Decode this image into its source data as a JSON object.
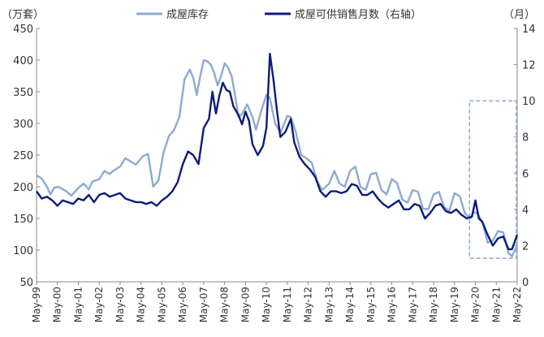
{
  "chart_data": {
    "type": "line",
    "title": "",
    "left_unit": "（万套）",
    "right_unit": "（月）",
    "left_axis": {
      "min": 50,
      "max": 450,
      "ticks": [
        "50",
        "100",
        "150",
        "200",
        "250",
        "300",
        "350",
        "400",
        "450"
      ]
    },
    "right_axis": {
      "min": 0,
      "max": 14,
      "ticks": [
        "0",
        "2",
        "4",
        "6",
        "8",
        "10",
        "12",
        "14"
      ]
    },
    "x_ticks": [
      "May-99",
      "May-00",
      "May-01",
      "May-02",
      "May-03",
      "May-04",
      "May-05",
      "May-06",
      "May-07",
      "May-08",
      "May-09",
      "May-10",
      "May-11",
      "May-12",
      "May-13",
      "May-14",
      "May-15",
      "May-16",
      "May-17",
      "May-18",
      "May-19",
      "May-20",
      "May-21",
      "May-22"
    ],
    "x_range": [
      "1999-05",
      "2022-05"
    ],
    "grid": false,
    "legend_placement": "top",
    "series": [
      {
        "name": "成屋库存",
        "axis": "left",
        "color": "#8eaad2",
        "points": [
          [
            "1999-05",
            218
          ],
          [
            "1999-08",
            213
          ],
          [
            "1999-11",
            200
          ],
          [
            "2000-01",
            188
          ],
          [
            "2000-03",
            198
          ],
          [
            "2000-05",
            200
          ],
          [
            "2000-07",
            198
          ],
          [
            "2000-10",
            193
          ],
          [
            "2001-01",
            186
          ],
          [
            "2001-05",
            198
          ],
          [
            "2001-08",
            205
          ],
          [
            "2001-11",
            196
          ],
          [
            "2002-01",
            208
          ],
          [
            "2002-05",
            212
          ],
          [
            "2002-08",
            225
          ],
          [
            "2002-11",
            220
          ],
          [
            "2003-01",
            225
          ],
          [
            "2003-05",
            232
          ],
          [
            "2003-08",
            245
          ],
          [
            "2003-11",
            240
          ],
          [
            "2004-02",
            235
          ],
          [
            "2004-06",
            248
          ],
          [
            "2004-09",
            252
          ],
          [
            "2004-12",
            200
          ],
          [
            "2005-03",
            210
          ],
          [
            "2005-06",
            255
          ],
          [
            "2005-09",
            280
          ],
          [
            "2005-12",
            290
          ],
          [
            "2006-03",
            310
          ],
          [
            "2006-06",
            370
          ],
          [
            "2006-09",
            385
          ],
          [
            "2006-11",
            372
          ],
          [
            "2007-01",
            345
          ],
          [
            "2007-03",
            375
          ],
          [
            "2007-05",
            400
          ],
          [
            "2007-07",
            398
          ],
          [
            "2007-09",
            393
          ],
          [
            "2007-11",
            380
          ],
          [
            "2008-01",
            360
          ],
          [
            "2008-03",
            375
          ],
          [
            "2008-05",
            395
          ],
          [
            "2008-07",
            388
          ],
          [
            "2008-09",
            375
          ],
          [
            "2008-11",
            345
          ],
          [
            "2009-01",
            310
          ],
          [
            "2009-03",
            315
          ],
          [
            "2009-06",
            330
          ],
          [
            "2009-09",
            310
          ],
          [
            "2009-11",
            290
          ],
          [
            "2010-02",
            320
          ],
          [
            "2010-05",
            345
          ],
          [
            "2010-07",
            340
          ],
          [
            "2010-10",
            300
          ],
          [
            "2011-01",
            285
          ],
          [
            "2011-05",
            312
          ],
          [
            "2011-07",
            310
          ],
          [
            "2011-10",
            285
          ],
          [
            "2012-01",
            250
          ],
          [
            "2012-04",
            245
          ],
          [
            "2012-07",
            238
          ],
          [
            "2012-10",
            210
          ],
          [
            "2013-01",
            195
          ],
          [
            "2013-05",
            205
          ],
          [
            "2013-08",
            225
          ],
          [
            "2013-11",
            205
          ],
          [
            "2014-02",
            200
          ],
          [
            "2014-05",
            225
          ],
          [
            "2014-08",
            232
          ],
          [
            "2014-11",
            200
          ],
          [
            "2015-02",
            195
          ],
          [
            "2015-05",
            220
          ],
          [
            "2015-08",
            222
          ],
          [
            "2015-11",
            195
          ],
          [
            "2016-02",
            188
          ],
          [
            "2016-05",
            212
          ],
          [
            "2016-08",
            206
          ],
          [
            "2016-11",
            180
          ],
          [
            "2017-02",
            175
          ],
          [
            "2017-05",
            195
          ],
          [
            "2017-08",
            192
          ],
          [
            "2017-11",
            165
          ],
          [
            "2018-02",
            165
          ],
          [
            "2018-05",
            188
          ],
          [
            "2018-08",
            192
          ],
          [
            "2018-11",
            168
          ],
          [
            "2019-02",
            162
          ],
          [
            "2019-05",
            190
          ],
          [
            "2019-08",
            185
          ],
          [
            "2019-11",
            158
          ],
          [
            "2020-02",
            150
          ],
          [
            "2020-04",
            160
          ],
          [
            "2020-06",
            158
          ],
          [
            "2020-09",
            145
          ],
          [
            "2020-12",
            112
          ],
          [
            "2021-03",
            115
          ],
          [
            "2021-06",
            130
          ],
          [
            "2021-09",
            128
          ],
          [
            "2021-12",
            95
          ],
          [
            "2022-02",
            90
          ],
          [
            "2022-05",
            108
          ]
        ]
      },
      {
        "name": "成屋可供销售月数（右轴）",
        "axis": "right",
        "color": "#0c1c78",
        "points": [
          [
            "1999-05",
            5.0
          ],
          [
            "1999-08",
            4.6
          ],
          [
            "1999-11",
            4.7
          ],
          [
            "2000-02",
            4.5
          ],
          [
            "2000-05",
            4.2
          ],
          [
            "2000-08",
            4.5
          ],
          [
            "2000-11",
            4.4
          ],
          [
            "2001-02",
            4.3
          ],
          [
            "2001-05",
            4.6
          ],
          [
            "2001-08",
            4.5
          ],
          [
            "2001-11",
            4.8
          ],
          [
            "2002-02",
            4.4
          ],
          [
            "2002-05",
            4.8
          ],
          [
            "2002-08",
            4.9
          ],
          [
            "2002-11",
            4.7
          ],
          [
            "2003-02",
            4.8
          ],
          [
            "2003-05",
            4.9
          ],
          [
            "2003-08",
            4.6
          ],
          [
            "2003-11",
            4.5
          ],
          [
            "2004-02",
            4.4
          ],
          [
            "2004-05",
            4.4
          ],
          [
            "2004-08",
            4.3
          ],
          [
            "2004-11",
            4.4
          ],
          [
            "2005-02",
            4.2
          ],
          [
            "2005-05",
            4.5
          ],
          [
            "2005-08",
            4.7
          ],
          [
            "2005-11",
            5.0
          ],
          [
            "2006-02",
            5.5
          ],
          [
            "2006-05",
            6.5
          ],
          [
            "2006-08",
            7.2
          ],
          [
            "2006-11",
            7.0
          ],
          [
            "2007-02",
            6.5
          ],
          [
            "2007-05",
            8.5
          ],
          [
            "2007-08",
            9.0
          ],
          [
            "2007-10",
            10.5
          ],
          [
            "2007-12",
            9.3
          ],
          [
            "2008-02",
            10.3
          ],
          [
            "2008-04",
            11.0
          ],
          [
            "2008-06",
            10.6
          ],
          [
            "2008-08",
            10.5
          ],
          [
            "2008-10",
            9.7
          ],
          [
            "2009-01",
            9.2
          ],
          [
            "2009-03",
            8.7
          ],
          [
            "2009-05",
            9.4
          ],
          [
            "2009-07",
            8.9
          ],
          [
            "2009-09",
            7.6
          ],
          [
            "2009-12",
            7.0
          ],
          [
            "2010-03",
            7.5
          ],
          [
            "2010-05",
            8.5
          ],
          [
            "2010-07",
            12.6
          ],
          [
            "2010-09",
            11.2
          ],
          [
            "2010-11",
            9.5
          ],
          [
            "2011-01",
            8.0
          ],
          [
            "2011-04",
            8.3
          ],
          [
            "2011-07",
            9.0
          ],
          [
            "2011-09",
            7.7
          ],
          [
            "2011-12",
            6.9
          ],
          [
            "2012-03",
            6.5
          ],
          [
            "2012-06",
            6.2
          ],
          [
            "2012-09",
            5.8
          ],
          [
            "2012-12",
            5.0
          ],
          [
            "2013-03",
            4.7
          ],
          [
            "2013-06",
            5.0
          ],
          [
            "2013-09",
            5.0
          ],
          [
            "2013-12",
            4.9
          ],
          [
            "2014-03",
            5.0
          ],
          [
            "2014-06",
            5.4
          ],
          [
            "2014-09",
            5.3
          ],
          [
            "2014-12",
            4.8
          ],
          [
            "2015-03",
            4.8
          ],
          [
            "2015-06",
            5.0
          ],
          [
            "2015-09",
            4.6
          ],
          [
            "2015-12",
            4.3
          ],
          [
            "2016-03",
            4.1
          ],
          [
            "2016-06",
            4.3
          ],
          [
            "2016-09",
            4.5
          ],
          [
            "2016-12",
            4.0
          ],
          [
            "2017-03",
            4.0
          ],
          [
            "2017-06",
            4.3
          ],
          [
            "2017-09",
            4.2
          ],
          [
            "2017-12",
            3.5
          ],
          [
            "2018-03",
            3.8
          ],
          [
            "2018-06",
            4.2
          ],
          [
            "2018-09",
            4.3
          ],
          [
            "2018-12",
            3.9
          ],
          [
            "2019-03",
            3.8
          ],
          [
            "2019-06",
            4.0
          ],
          [
            "2019-09",
            3.7
          ],
          [
            "2019-12",
            3.5
          ],
          [
            "2020-03",
            3.6
          ],
          [
            "2020-05",
            4.5
          ],
          [
            "2020-07",
            3.5
          ],
          [
            "2020-09",
            3.3
          ],
          [
            "2020-12",
            2.6
          ],
          [
            "2021-03",
            2.0
          ],
          [
            "2021-06",
            2.4
          ],
          [
            "2021-09",
            2.5
          ],
          [
            "2021-12",
            1.8
          ],
          [
            "2022-02",
            1.8
          ],
          [
            "2022-05",
            2.6
          ]
        ]
      }
    ],
    "annotations": [
      {
        "type": "dashed-box",
        "x_from": "2020-03",
        "x_to": "2022-05",
        "right_axis_from": 1.3,
        "right_axis_to": 10.0,
        "color": "#8eaad2"
      }
    ]
  }
}
